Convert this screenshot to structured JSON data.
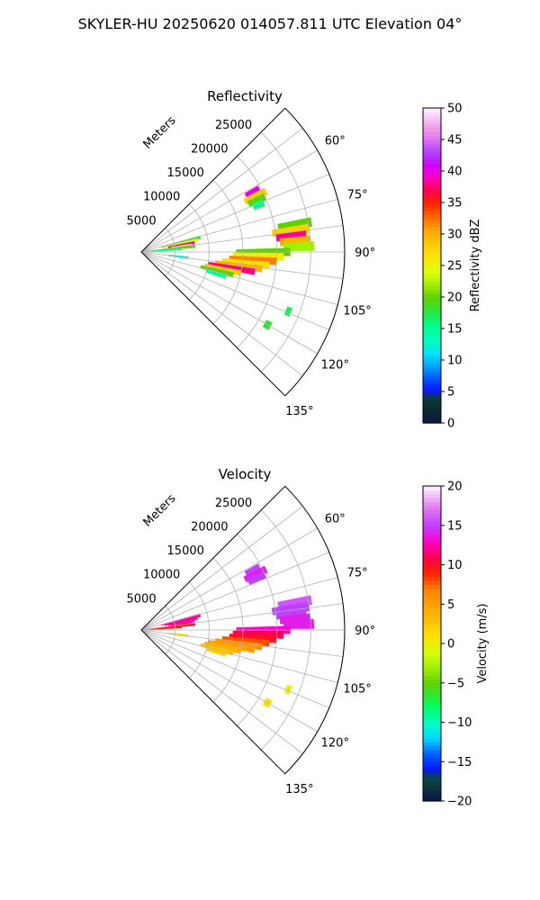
{
  "figure": {
    "suptitle": "SKYLER-HU  20250620  014057.811 UTC Elevation 04°"
  },
  "chart_data": [
    {
      "type": "heatmap",
      "projection": "polar-sector",
      "title": "Reflectivity",
      "radial_axis_label": "Meters",
      "r_ticks": [
        "5000",
        "10000",
        "15000",
        "20000",
        "25000"
      ],
      "r_tick_values": [
        5000,
        10000,
        15000,
        20000,
        25000
      ],
      "rlim": [
        0,
        30000
      ],
      "theta_ticks": [
        "60°",
        "75°",
        "90°",
        "105°",
        "120°",
        "135°"
      ],
      "theta_tick_values": [
        60,
        75,
        90,
        105,
        120,
        135
      ],
      "theta_range": [
        45,
        135
      ],
      "grid": true,
      "colorbar": {
        "label": "Reflectivity dBZ",
        "ticks": [
          "0",
          "5",
          "10",
          "15",
          "20",
          "25",
          "30",
          "35",
          "40",
          "45",
          "50"
        ],
        "range": [
          0,
          50
        ],
        "stops": [
          {
            "v": 0,
            "c": "#0a1450"
          },
          {
            "v": 2,
            "c": "#0a2a2a"
          },
          {
            "v": 4,
            "c": "#0a3a3a"
          },
          {
            "v": 5,
            "c": "#0a14ff"
          },
          {
            "v": 7,
            "c": "#0050ff"
          },
          {
            "v": 9,
            "c": "#00a0ff"
          },
          {
            "v": 11,
            "c": "#00e0ff"
          },
          {
            "v": 13,
            "c": "#00ffc0"
          },
          {
            "v": 16,
            "c": "#00ff80"
          },
          {
            "v": 18,
            "c": "#30e030"
          },
          {
            "v": 20,
            "c": "#60d000"
          },
          {
            "v": 22,
            "c": "#a0f000"
          },
          {
            "v": 24,
            "c": "#e0ff00"
          },
          {
            "v": 27,
            "c": "#ffe000"
          },
          {
            "v": 30,
            "c": "#ffb000"
          },
          {
            "v": 32,
            "c": "#ff8000"
          },
          {
            "v": 35,
            "c": "#ff2000"
          },
          {
            "v": 37,
            "c": "#ff0050"
          },
          {
            "v": 39,
            "c": "#ff00c0"
          },
          {
            "v": 41,
            "c": "#d000ff"
          },
          {
            "v": 43,
            "c": "#b040ff"
          },
          {
            "v": 45,
            "c": "#e070f0"
          },
          {
            "v": 47,
            "c": "#f0a0f0"
          },
          {
            "v": 50,
            "c": "#fff0ff"
          }
        ]
      },
      "cells": [
        {
          "az": 62,
          "r": [
            17500,
            19800
          ],
          "v": 40
        },
        {
          "az": 64,
          "r": [
            17000,
            20500
          ],
          "v": 28
        },
        {
          "az": 66,
          "r": [
            17300,
            20000
          ],
          "v": 20
        },
        {
          "az": 68,
          "r": [
            17800,
            19500
          ],
          "v": 16
        },
        {
          "az": 76,
          "r": [
            3000,
            9000
          ],
          "v": 18
        },
        {
          "az": 78,
          "r": [
            3500,
            8500
          ],
          "v": 24
        },
        {
          "az": 80,
          "r": [
            4000,
            8000
          ],
          "v": 40
        },
        {
          "az": 82,
          "r": [
            4500,
            7500
          ],
          "v": 26
        },
        {
          "az": 84,
          "r": [
            1500,
            8000
          ],
          "v": 20
        },
        {
          "az": 86,
          "r": [
            1000,
            6000
          ],
          "v": 15
        },
        {
          "az": 80,
          "r": [
            20500,
            25500
          ],
          "v": 20
        },
        {
          "az": 82,
          "r": [
            19500,
            25000
          ],
          "v": 28
        },
        {
          "az": 84,
          "r": [
            20000,
            24500
          ],
          "v": 38
        },
        {
          "az": 86,
          "r": [
            20500,
            25000
          ],
          "v": 30
        },
        {
          "az": 88,
          "r": [
            21000,
            25500
          ],
          "v": 22
        },
        {
          "az": 90,
          "r": [
            14000,
            22000
          ],
          "v": 20
        },
        {
          "az": 92,
          "r": [
            13500,
            21000
          ],
          "v": 26
        },
        {
          "az": 94,
          "r": [
            13000,
            20000
          ],
          "v": 32
        },
        {
          "az": 96,
          "r": [
            12000,
            19000
          ],
          "v": 27
        },
        {
          "az": 98,
          "r": [
            11000,
            18000
          ],
          "v": 30
        },
        {
          "az": 100,
          "r": [
            10000,
            17000
          ],
          "v": 38
        },
        {
          "az": 102,
          "r": [
            9500,
            15000
          ],
          "v": 28
        },
        {
          "az": 104,
          "r": [
            9000,
            14000
          ],
          "v": 20
        },
        {
          "az": 106,
          "r": [
            10000,
            13000
          ],
          "v": 15
        },
        {
          "az": 97,
          "r": [
            4000,
            7000
          ],
          "v": 12
        },
        {
          "az": 112,
          "r": [
            23000,
            23800
          ],
          "v": 17
        },
        {
          "az": 120,
          "r": [
            21000,
            22000
          ],
          "v": 18
        }
      ]
    },
    {
      "type": "heatmap",
      "projection": "polar-sector",
      "title": "Velocity",
      "radial_axis_label": "Meters",
      "r_ticks": [
        "5000",
        "10000",
        "15000",
        "20000",
        "25000"
      ],
      "r_tick_values": [
        5000,
        10000,
        15000,
        20000,
        25000
      ],
      "rlim": [
        0,
        30000
      ],
      "theta_ticks": [
        "60°",
        "75°",
        "90°",
        "105°",
        "120°",
        "135°"
      ],
      "theta_tick_values": [
        60,
        75,
        90,
        105,
        120,
        135
      ],
      "theta_range": [
        45,
        135
      ],
      "grid": true,
      "colorbar": {
        "label": "Velocity (m/s)",
        "ticks": [
          "−20",
          "−15",
          "−10",
          "−5",
          "0",
          "5",
          "10",
          "15",
          "20"
        ],
        "range": [
          -20,
          20
        ],
        "stops": [
          {
            "v": -20,
            "c": "#0a1450"
          },
          {
            "v": -18,
            "c": "#0a3a3a"
          },
          {
            "v": -17,
            "c": "#0a4a4a"
          },
          {
            "v": -16,
            "c": "#0a14ff"
          },
          {
            "v": -14,
            "c": "#0060ff"
          },
          {
            "v": -12,
            "c": "#00d8ff"
          },
          {
            "v": -10,
            "c": "#00ffc0"
          },
          {
            "v": -8,
            "c": "#00ff60"
          },
          {
            "v": -5,
            "c": "#60d000"
          },
          {
            "v": -3,
            "c": "#a0f000"
          },
          {
            "v": -1,
            "c": "#d8ff00"
          },
          {
            "v": 1,
            "c": "#ffe000"
          },
          {
            "v": 4,
            "c": "#ffb000"
          },
          {
            "v": 7,
            "c": "#ff8000"
          },
          {
            "v": 9,
            "c": "#ff2000"
          },
          {
            "v": 11,
            "c": "#ff0050"
          },
          {
            "v": 13,
            "c": "#ff00d0"
          },
          {
            "v": 15,
            "c": "#c040ff"
          },
          {
            "v": 17,
            "c": "#e070f0"
          },
          {
            "v": 20,
            "c": "#fff0ff"
          }
        ]
      },
      "cells": [
        {
          "az": 62,
          "r": [
            17500,
            19800
          ],
          "v": 15
        },
        {
          "az": 64,
          "r": [
            17000,
            20500
          ],
          "v": 14
        },
        {
          "az": 66,
          "r": [
            17300,
            20000
          ],
          "v": 15
        },
        {
          "az": 76,
          "r": [
            3000,
            9000
          ],
          "v": 12
        },
        {
          "az": 78,
          "r": [
            3500,
            8500
          ],
          "v": 12
        },
        {
          "az": 80,
          "r": [
            4000,
            8000
          ],
          "v": 13
        },
        {
          "az": 82,
          "r": [
            4500,
            7500
          ],
          "v": 11
        },
        {
          "az": 84,
          "r": [
            1500,
            8000
          ],
          "v": 10
        },
        {
          "az": 86,
          "r": [
            1000,
            6000
          ],
          "v": 9
        },
        {
          "az": 80,
          "r": [
            20500,
            25500
          ],
          "v": 16
        },
        {
          "az": 82,
          "r": [
            19500,
            25000
          ],
          "v": 15
        },
        {
          "az": 84,
          "r": [
            20000,
            24500
          ],
          "v": 15
        },
        {
          "az": 86,
          "r": [
            20500,
            25000
          ],
          "v": 14
        },
        {
          "az": 88,
          "r": [
            21000,
            25500
          ],
          "v": 14
        },
        {
          "az": 90,
          "r": [
            14000,
            22000
          ],
          "v": 13
        },
        {
          "az": 92,
          "r": [
            13500,
            21000
          ],
          "v": 11
        },
        {
          "az": 94,
          "r": [
            13000,
            20000
          ],
          "v": 10
        },
        {
          "az": 96,
          "r": [
            12000,
            19000
          ],
          "v": 8
        },
        {
          "az": 98,
          "r": [
            11000,
            18000
          ],
          "v": 6
        },
        {
          "az": 100,
          "r": [
            10000,
            17000
          ],
          "v": 5
        },
        {
          "az": 102,
          "r": [
            9500,
            15000
          ],
          "v": 4
        },
        {
          "az": 104,
          "r": [
            9000,
            14000
          ],
          "v": 3
        },
        {
          "az": 106,
          "r": [
            10000,
            13000
          ],
          "v": 2
        },
        {
          "az": 97,
          "r": [
            4000,
            7000
          ],
          "v": 1
        },
        {
          "az": 112,
          "r": [
            23000,
            23800
          ],
          "v": 0
        },
        {
          "az": 120,
          "r": [
            21000,
            22000
          ],
          "v": 1
        }
      ]
    }
  ]
}
